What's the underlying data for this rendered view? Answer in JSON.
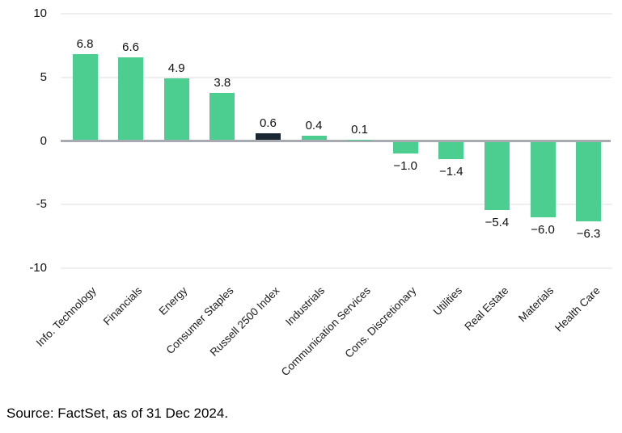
{
  "chart_data": {
    "type": "bar",
    "title": "",
    "xlabel": "",
    "ylabel": "",
    "categories": [
      "Info. Technology",
      "Financials",
      "Energy",
      "Consumer Staples",
      "Russell 2500 Index",
      "Industrials",
      "Communication Services",
      "Cons. Discretionary",
      "Utilities",
      "Real Estate",
      "Materials",
      "Health Care"
    ],
    "values": [
      6.8,
      6.6,
      4.9,
      3.8,
      0.6,
      0.4,
      0.1,
      -1.0,
      -1.4,
      -5.4,
      -6.0,
      -6.3
    ],
    "value_labels": [
      "6.8",
      "6.6",
      "4.9",
      "3.8",
      "0.6",
      "0.4",
      "0.1",
      "−1.0",
      "−1.4",
      "−5.4",
      "−6.0",
      "−6.3"
    ],
    "highlight_index": 4,
    "ylim": [
      -10,
      10
    ],
    "yticks": [
      10,
      5,
      0,
      -5,
      -10
    ],
    "ytick_labels": [
      "10",
      "5",
      "0",
      "-5",
      "-10"
    ],
    "grid": true,
    "legend": "none",
    "colors": {
      "bar": "#4BCE90",
      "highlight_bar": "#1B2833",
      "gridline": "#EFEFEF",
      "zero_line": "#A7AAB0",
      "label_text": "#111111"
    }
  },
  "footer": {
    "source": "Source: FactSet, as of 31 Dec 2024."
  }
}
